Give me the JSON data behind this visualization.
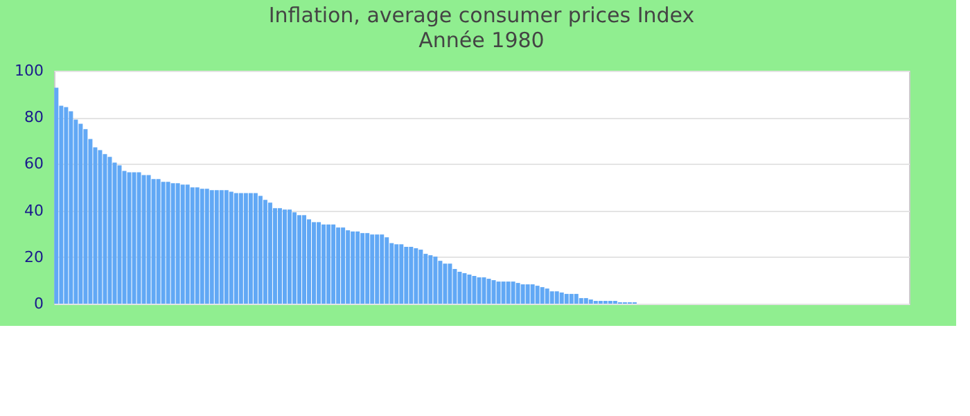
{
  "chart_data": {
    "type": "bar",
    "title": "Inflation, average consumer prices  Index",
    "subtitle": "Année 1980",
    "categories": [
      null,
      null,
      null,
      null,
      null,
      null,
      null,
      null,
      null,
      null,
      null,
      null,
      null,
      null,
      null,
      null,
      null,
      null,
      null,
      null,
      null,
      null,
      null,
      null,
      null,
      null,
      null,
      null,
      null,
      null,
      null,
      null,
      null,
      null,
      null,
      null,
      null,
      null,
      null,
      null,
      null,
      null,
      null,
      null,
      null,
      null,
      null,
      null,
      null,
      null,
      null,
      null,
      null,
      null,
      null,
      null,
      null,
      null,
      null,
      null,
      null,
      null,
      null,
      null,
      null,
      null,
      null,
      null,
      null,
      null,
      null,
      null,
      null,
      null,
      null,
      null,
      null,
      null,
      null,
      null,
      null,
      null,
      null,
      null,
      null,
      null,
      null,
      null,
      null,
      null,
      null,
      null,
      null,
      null,
      null,
      null,
      null,
      null,
      null,
      null,
      null,
      null,
      null,
      null,
      null,
      null,
      null,
      null,
      null,
      null,
      null,
      null,
      null,
      null,
      null,
      null,
      null,
      null,
      null,
      null,
      null,
      null,
      null,
      null,
      null,
      null,
      null,
      null,
      null,
      null,
      null,
      null,
      null,
      null,
      null,
      null,
      null,
      null,
      null,
      null,
      null,
      null,
      null,
      null,
      null,
      null,
      null,
      null,
      null,
      null,
      null,
      null,
      null,
      null,
      null,
      null,
      null,
      null,
      null,
      null,
      null,
      null,
      null,
      null,
      null,
      null,
      null,
      null,
      null,
      null,
      null,
      null,
      null,
      null,
      null,
      null
    ],
    "values": [
      92.7,
      85,
      84.4,
      82.6,
      79,
      77.2,
      74.9,
      70.7,
      67.1,
      65.9,
      64.2,
      63,
      60.6,
      59.4,
      57,
      56.4,
      56.4,
      56.4,
      55.2,
      55.2,
      53.5,
      53.5,
      52.3,
      52.3,
      51.7,
      51.7,
      51.1,
      51.1,
      49.9,
      49.9,
      49.3,
      49.3,
      48.7,
      48.7,
      48.7,
      48.7,
      48.1,
      47.5,
      47.5,
      47.5,
      47.5,
      47.5,
      46.3,
      44.6,
      43.4,
      41,
      41,
      40.4,
      40.4,
      39.2,
      38,
      38,
      36.2,
      35,
      35,
      34,
      34,
      34,
      32.7,
      32.7,
      31.5,
      31,
      31,
      30.3,
      30.3,
      29.7,
      29.7,
      29.7,
      28.5,
      26,
      25.5,
      25.5,
      24.4,
      24.4,
      23.8,
      23.2,
      21.4,
      20.8,
      20.2,
      18.4,
      17.2,
      17.2,
      14.9,
      13.7,
      13.1,
      12.5,
      11.9,
      11.3,
      11.3,
      10.7,
      10.1,
      9.5,
      9.5,
      9.5,
      9.5,
      8.9,
      8.3,
      8.3,
      8.3,
      7.7,
      7.1,
      6.5,
      5.3,
      5.3,
      4.8,
      4.2,
      4.2,
      4.2,
      2.4,
      2.4,
      1.8,
      1.2,
      1.2,
      1.2,
      1.2,
      1.2,
      0.6,
      0.6,
      0.6,
      0.6,
      0,
      0,
      0,
      0,
      0,
      0,
      0,
      0,
      0,
      0,
      0,
      0,
      0,
      0,
      0,
      0,
      0,
      0,
      0,
      0,
      0,
      0,
      0,
      0,
      0,
      0,
      0,
      0,
      0,
      0,
      0,
      0,
      0,
      0,
      0,
      0,
      0,
      0,
      0,
      0,
      0,
      0,
      0,
      0,
      0,
      0,
      0,
      0,
      0,
      0,
      0,
      0,
      0,
      0,
      0,
      0
    ],
    "color": "#61a8f5",
    "ylim": [
      0,
      100
    ],
    "yticks": [
      0,
      20,
      40,
      60,
      80,
      100
    ],
    "grid": "y"
  }
}
